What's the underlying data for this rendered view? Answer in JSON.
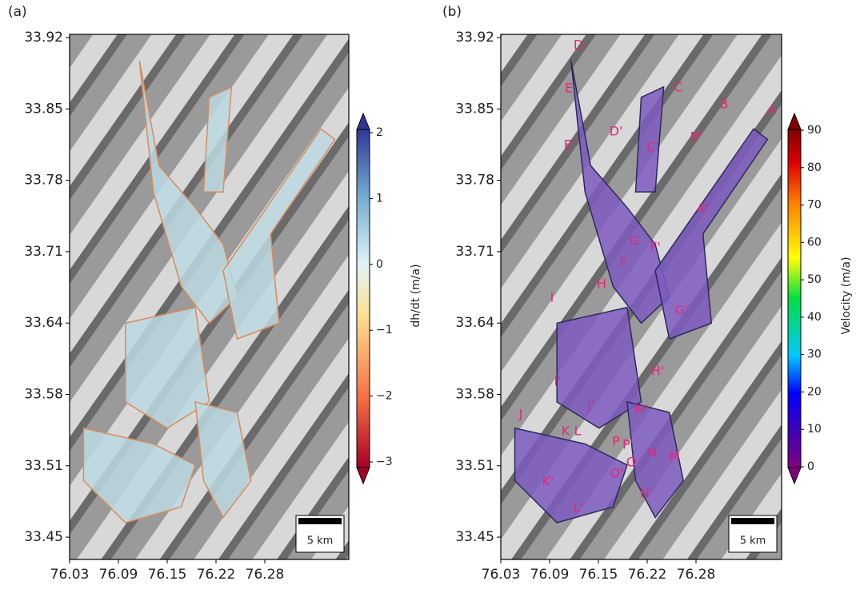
{
  "panels": [
    {
      "label": "(a)",
      "yticks": [
        "33.92",
        "33.85",
        "33.78",
        "33.71",
        "33.64",
        "33.58",
        "33.51",
        "33.45"
      ],
      "xticks": [
        "76.03",
        "76.09",
        "76.15",
        "76.22",
        "76.28"
      ],
      "colorbar": {
        "label": "dh/dt (m/a)",
        "ticks": [
          "2",
          "1",
          "0",
          "−1",
          "−2",
          "−3"
        ]
      },
      "scale_bar": "5 km",
      "glacier_labels": []
    },
    {
      "label": "(b)",
      "yticks": [
        "33.92",
        "33.85",
        "33.78",
        "33.71",
        "33.64",
        "33.58",
        "33.51",
        "33.45"
      ],
      "xticks": [
        "76.03",
        "76.09",
        "76.15",
        "76.22",
        "76.28"
      ],
      "colorbar": {
        "label": "Velocity (m/a)",
        "ticks": [
          "90",
          "80",
          "70",
          "60",
          "50",
          "40",
          "30",
          "20",
          "10",
          "0"
        ]
      },
      "scale_bar": "5 km",
      "glacier_labels": [
        "D",
        "E",
        "C",
        "B",
        "A",
        "D'",
        "E'",
        "C'",
        "B'",
        "A'",
        "G",
        "F'",
        "F",
        "H",
        "I",
        "G'",
        "H'",
        "I'",
        "J'",
        "J",
        "M'",
        "K",
        "L",
        "P",
        "P'",
        "N",
        "M",
        "O",
        "O'",
        "K'",
        "N'",
        "L'"
      ]
    }
  ]
}
